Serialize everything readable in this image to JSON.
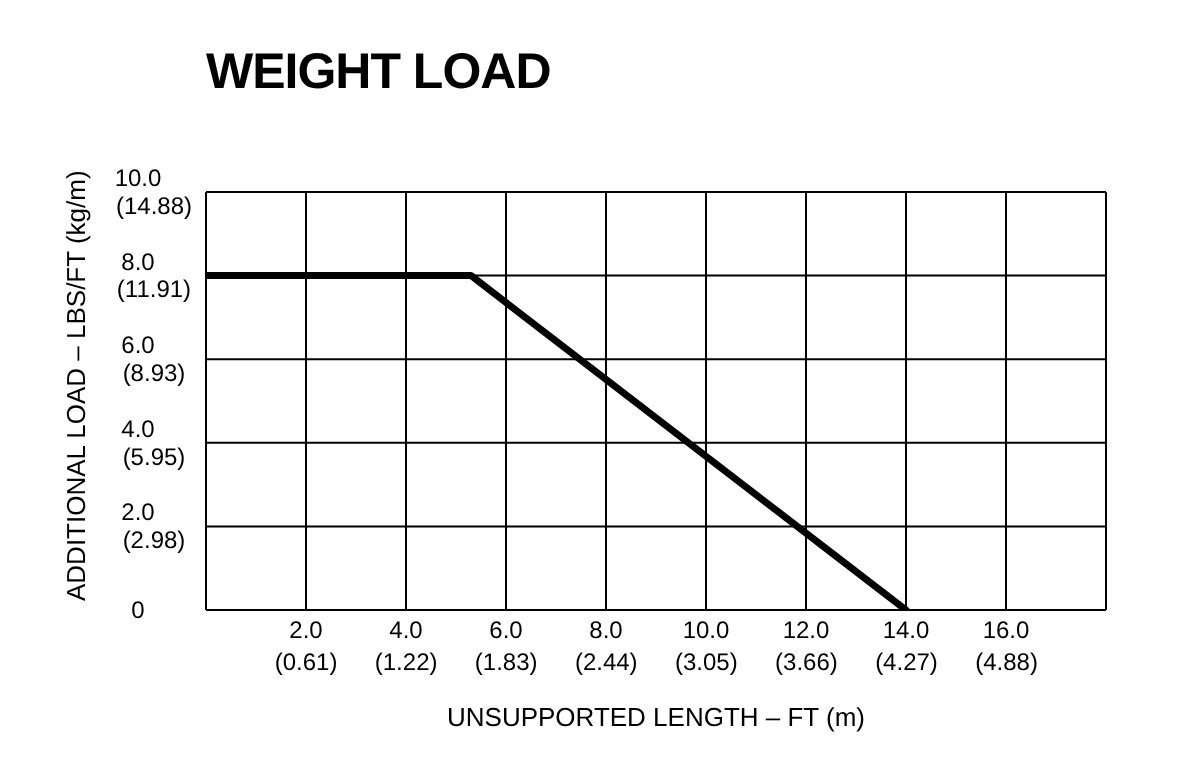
{
  "chart_data": {
    "type": "line",
    "title": "WEIGHT LOAD",
    "xlabel": "UNSUPPORTED LENGTH – FT (m)",
    "ylabel": "ADDITIONAL LOAD – LBS/FT (kg/m)",
    "x": [
      0,
      5.3,
      14
    ],
    "series": [
      {
        "color": "#000000",
        "values": [
          8,
          8,
          0
        ]
      }
    ],
    "xlim": [
      0,
      18
    ],
    "ylim": [
      0,
      10
    ],
    "xticks": [
      {
        "value": 0,
        "label": null
      },
      {
        "value": 2,
        "label": "2.0"
      },
      {
        "value": 4,
        "label": "4.0"
      },
      {
        "value": 6,
        "label": "6.0"
      },
      {
        "value": 8,
        "label": "8.0"
      },
      {
        "value": 10,
        "label": "10.0"
      },
      {
        "value": 12,
        "label": "12.0"
      },
      {
        "value": 14,
        "label": "14.0"
      },
      {
        "value": 16,
        "label": "16.0"
      },
      {
        "value": 18,
        "label": null
      }
    ],
    "yticks": [
      0,
      {
        "value": 2,
        "label": "2.0"
      },
      {
        "value": 4,
        "label": "4.0"
      },
      {
        "value": 6,
        "label": "6.0"
      },
      {
        "value": 8,
        "label": "8.0"
      },
      {
        "value": 10,
        "label": "10.0"
      }
    ],
    "x2lim": [
      0,
      5.486
    ],
    "x2ticks": [
      {
        "value": 0.61,
        "label": "(0.61)"
      },
      {
        "value": 1.22,
        "label": "(1.22)"
      },
      {
        "value": 1.83,
        "label": "(1.83)"
      },
      {
        "value": 2.44,
        "label": "(2.44)"
      },
      {
        "value": 3.05,
        "label": "(3.05)"
      },
      {
        "value": 3.66,
        "label": "(3.66)"
      },
      {
        "value": 4.27,
        "label": "(4.27)"
      },
      {
        "value": 4.88,
        "label": "(4.88)"
      }
    ],
    "y2lim": [
      0,
      14.88
    ],
    "y2ticks": [
      {
        "value": 2.98,
        "label": "(2.98)"
      },
      {
        "value": 5.95,
        "label": "(5.95)"
      },
      {
        "value": 8.93,
        "label": "(8.93)"
      },
      {
        "value": 11.91,
        "label": "(11.91)"
      },
      {
        "value": 14.88,
        "label": "(14.88)"
      }
    ],
    "grid": true,
    "marker": "none",
    "line_style": "solid",
    "legend": false
  }
}
